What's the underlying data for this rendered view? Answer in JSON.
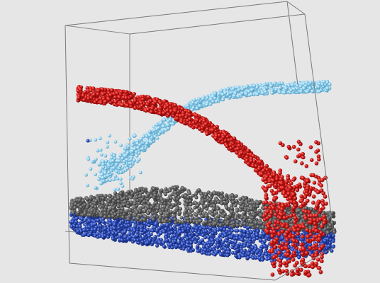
{
  "scene": {
    "background_color": "#e6e6e6",
    "frame_color": "#7a7a7a",
    "particle_colors": {
      "red_stream": "#d01818",
      "light_blue_stream": "#8fd0ee",
      "gray_layer": "#5e5e5e",
      "blue_layer": "#2746b0"
    }
  }
}
